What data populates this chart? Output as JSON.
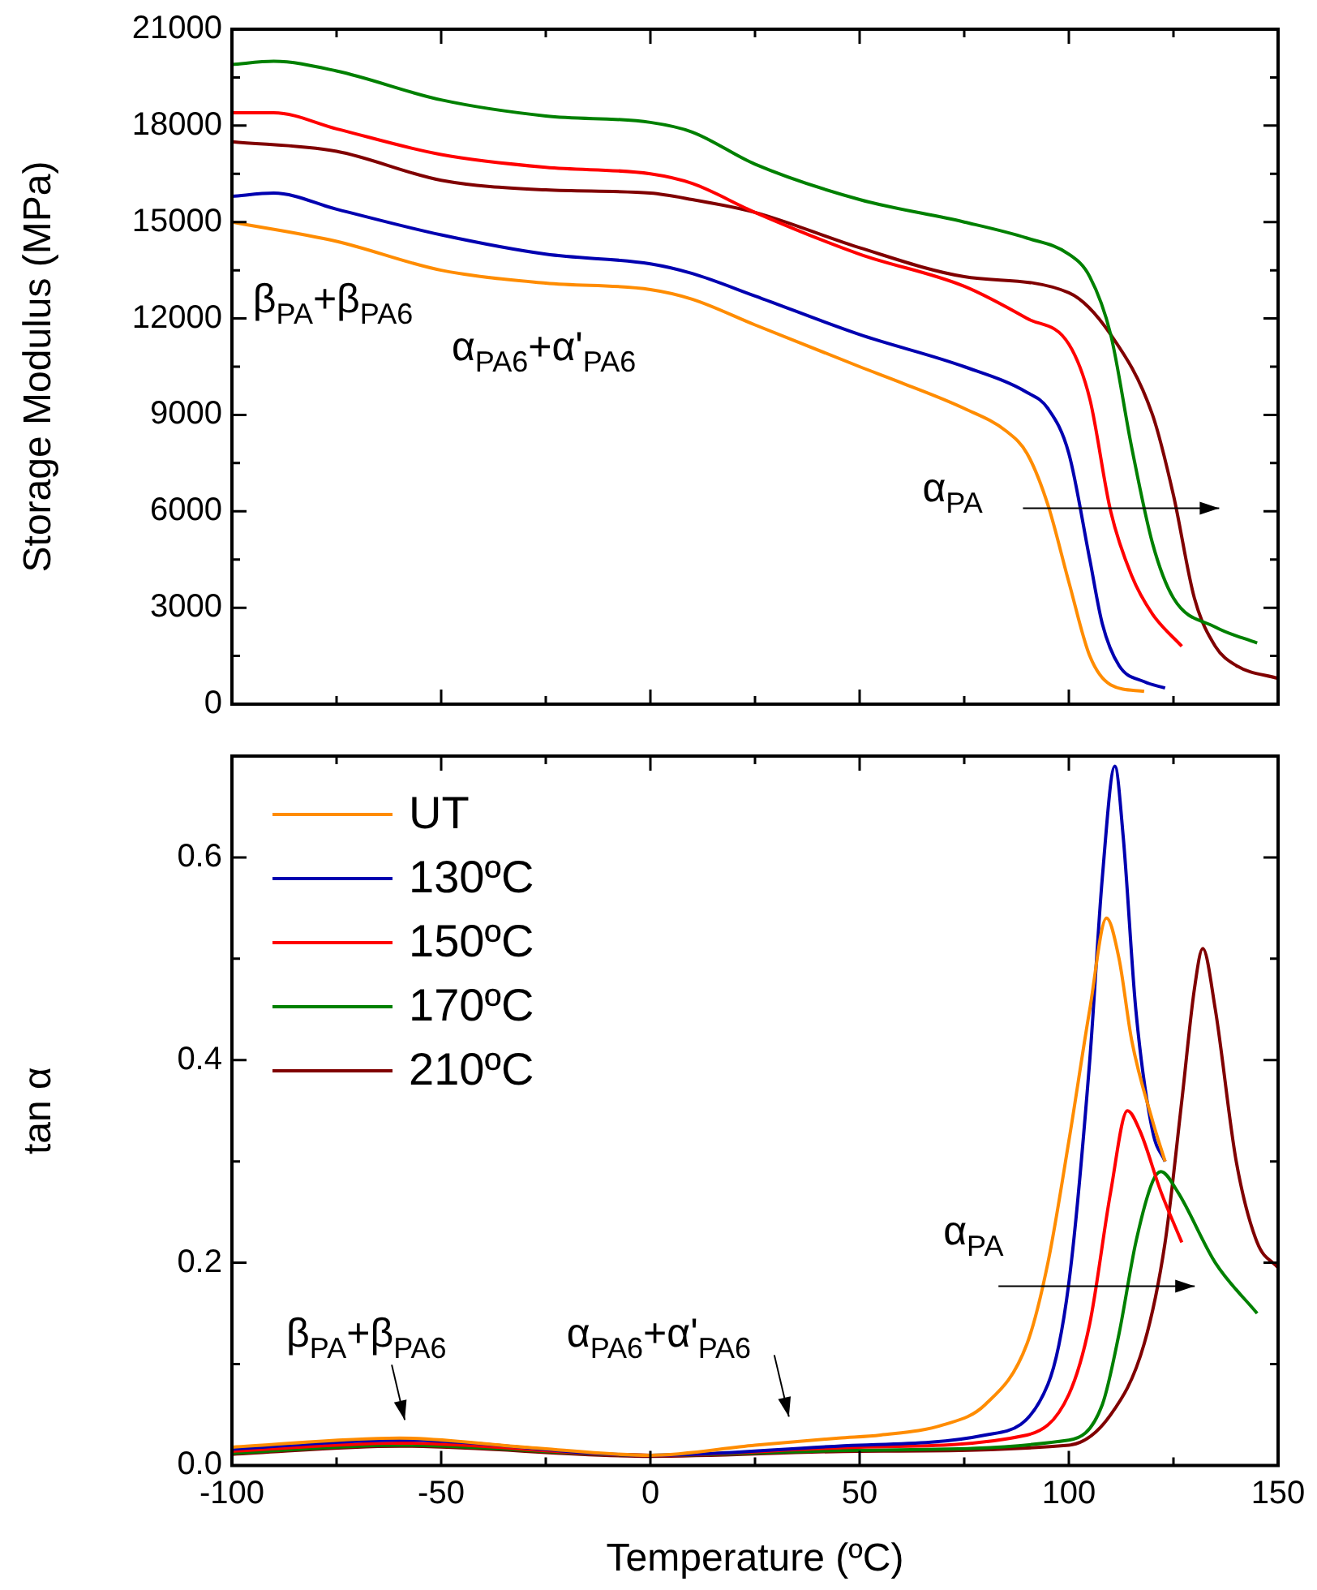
{
  "chart_data": [
    {
      "type": "line",
      "ylabel": "Storage Modulus (MPa)",
      "xlim": [
        -100,
        150
      ],
      "xticks": [
        -100,
        -50,
        0,
        50,
        100,
        150
      ],
      "ylim": [
        0,
        21000
      ],
      "yticks": [
        0,
        3000,
        6000,
        9000,
        12000,
        15000,
        18000,
        21000
      ],
      "tick_labels": "y",
      "line_style": "solid",
      "marker": "none",
      "series": [
        {
          "color": "#ff8c00",
          "x": [
            -100,
            -75,
            -50,
            -25,
            0,
            10,
            25,
            50,
            60,
            75,
            85,
            90,
            95,
            100,
            105,
            110,
            118
          ],
          "values": [
            15000,
            14400,
            13500,
            13100,
            12900,
            12600,
            11800,
            10500,
            10000,
            9200,
            8500,
            7800,
            6200,
            3800,
            1500,
            600,
            400
          ]
        },
        {
          "color": "#0000b0",
          "x": [
            -100,
            -90,
            -75,
            -50,
            -25,
            0,
            10,
            25,
            50,
            75,
            90,
            95,
            100,
            105,
            108,
            112,
            118,
            123
          ],
          "values": [
            15800,
            15900,
            15400,
            14600,
            14000,
            13700,
            13400,
            12700,
            11500,
            10500,
            9700,
            9200,
            7800,
            4500,
            2500,
            1200,
            700,
            500
          ]
        },
        {
          "color": "#ff0000",
          "x": [
            -100,
            -90,
            -75,
            -50,
            -25,
            0,
            10,
            25,
            50,
            75,
            90,
            100,
            105,
            110,
            115,
            120,
            127
          ],
          "values": [
            18400,
            18400,
            17900,
            17100,
            16700,
            16500,
            16200,
            15300,
            14000,
            13000,
            12000,
            11200,
            9500,
            6000,
            4000,
            2800,
            1800
          ]
        },
        {
          "color": "#008000",
          "x": [
            -100,
            -90,
            -75,
            -50,
            -25,
            0,
            10,
            25,
            50,
            75,
            90,
            100,
            105,
            110,
            115,
            120,
            125,
            135,
            145
          ],
          "values": [
            19900,
            20000,
            19700,
            18800,
            18300,
            18100,
            17800,
            16800,
            15700,
            15000,
            14500,
            14000,
            13300,
            11500,
            8000,
            5000,
            3300,
            2400,
            1900
          ]
        },
        {
          "color": "#800000",
          "x": [
            -100,
            -75,
            -50,
            -25,
            0,
            10,
            25,
            50,
            75,
            100,
            110,
            120,
            125,
            130,
            135,
            140,
            150
          ],
          "values": [
            17500,
            17200,
            16300,
            16000,
            15900,
            15700,
            15300,
            14200,
            13300,
            12800,
            11500,
            9000,
            6500,
            3300,
            1800,
            1200,
            800
          ]
        }
      ],
      "annotations": [
        "β$_{PA}$+β$_{PA6}$",
        "α$_{PA6}$+α'$_{PA6}$",
        "α$_{PA}$"
      ]
    },
    {
      "type": "line",
      "xlabel": "Temperature (ºC)",
      "ylabel": "tan α",
      "xlim": [
        -100,
        150
      ],
      "xticks": [
        -100,
        -50,
        0,
        50,
        100,
        150
      ],
      "ylim": [
        0,
        0.7
      ],
      "yticks": [
        {
          "value": 0,
          "label": "0.0"
        },
        {
          "value": 0.2,
          "label": "0.2"
        },
        {
          "value": 0.4,
          "label": "0.4"
        },
        {
          "value": 0.6,
          "label": "0.6"
        }
      ],
      "legend": "top left",
      "line_style": "solid",
      "marker": "none",
      "series": [
        {
          "name": "UT",
          "color": "#ff8c00",
          "x": [
            -100,
            -60,
            -30,
            0,
            25,
            45,
            55,
            70,
            80,
            90,
            95,
            100,
            105,
            109,
            112,
            115,
            120,
            123
          ],
          "values": [
            0.018,
            0.027,
            0.018,
            0.01,
            0.02,
            0.027,
            0.03,
            0.04,
            0.06,
            0.12,
            0.2,
            0.32,
            0.45,
            0.54,
            0.5,
            0.42,
            0.34,
            0.3
          ]
        },
        {
          "name": "130ºC",
          "color": "#0000b0",
          "x": [
            -100,
            -60,
            0,
            50,
            80,
            95,
            100,
            105,
            108,
            111,
            113,
            116,
            120,
            123
          ],
          "values": [
            0.016,
            0.025,
            0.01,
            0.02,
            0.03,
            0.08,
            0.18,
            0.4,
            0.58,
            0.69,
            0.62,
            0.45,
            0.33,
            0.3
          ]
        },
        {
          "name": "150ºC",
          "color": "#ff0000",
          "x": [
            -100,
            -60,
            0,
            50,
            90,
            100,
            105,
            110,
            114,
            117,
            122,
            127
          ],
          "values": [
            0.014,
            0.022,
            0.01,
            0.018,
            0.03,
            0.07,
            0.14,
            0.27,
            0.35,
            0.33,
            0.27,
            0.22
          ]
        },
        {
          "name": "170ºC",
          "color": "#008000",
          "x": [
            -100,
            -60,
            0,
            50,
            100,
            108,
            112,
            116,
            120,
            122,
            126,
            135,
            145
          ],
          "values": [
            0.012,
            0.02,
            0.01,
            0.015,
            0.025,
            0.06,
            0.13,
            0.22,
            0.28,
            0.29,
            0.27,
            0.2,
            0.15
          ]
        },
        {
          "name": "210ºC",
          "color": "#800000",
          "x": [
            -100,
            -60,
            0,
            50,
            100,
            110,
            118,
            123,
            127,
            130,
            132,
            135,
            140,
            145,
            150
          ],
          "values": [
            0.011,
            0.019,
            0.009,
            0.014,
            0.02,
            0.05,
            0.12,
            0.22,
            0.36,
            0.47,
            0.51,
            0.45,
            0.3,
            0.22,
            0.195
          ]
        }
      ],
      "annotations": [
        "β$_{PA}$+β$_{PA6}$",
        "α$_{PA6}$+α'$_{PA6}$",
        "α$_{PA}$"
      ]
    }
  ]
}
